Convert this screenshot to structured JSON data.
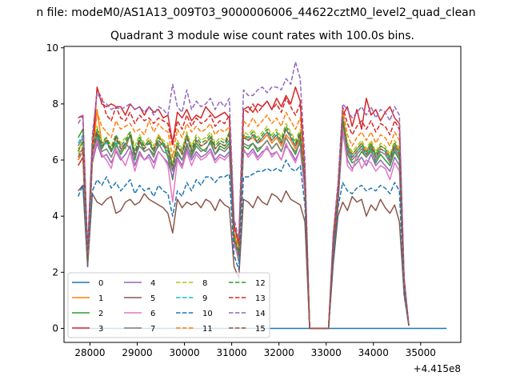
{
  "chart_data": {
    "type": "line",
    "suptitle": "n file: modeM0/AS1A13_009T03_9000006006_44622cztM0_level2_quad_clean",
    "title": "Quadrant 3 module wise count rates with 100.0s bins.",
    "offset_label": "+4.415e8",
    "xlabel": "",
    "ylabel": "",
    "xlim": [
      27450,
      35850
    ],
    "ylim": [
      -0.5,
      10.05
    ],
    "xticks": [
      28000,
      29000,
      30000,
      31000,
      32000,
      33000,
      34000,
      35000
    ],
    "xtick_labels": [
      "28000",
      "29000",
      "30000",
      "31000",
      "32000",
      "33000",
      "34000",
      "35000"
    ],
    "yticks": [
      0,
      2,
      4,
      6,
      8,
      10
    ],
    "ytick_labels": [
      "0",
      "2",
      "4",
      "6",
      "8",
      "10"
    ],
    "grid": false,
    "legend_location": "lower left",
    "legend_columns": 4,
    "x_start": 27750,
    "x_step": 100,
    "series": [
      {
        "name": "0",
        "color": "#1f77b4",
        "dash": "solid",
        "values": [
          0,
          0,
          0,
          0,
          0,
          0,
          0,
          0,
          0,
          0,
          0,
          0,
          0,
          0,
          0,
          0,
          0,
          0,
          0,
          0,
          0,
          0,
          0,
          0,
          0,
          0,
          0,
          0,
          0,
          0,
          0,
          0,
          0,
          0,
          0,
          0,
          0,
          0,
          0,
          0,
          0,
          0,
          0,
          0,
          0,
          0,
          0,
          0,
          0,
          0,
          0,
          0,
          0,
          0,
          0,
          0,
          0,
          0,
          0,
          0,
          0,
          0,
          0,
          0,
          0,
          0,
          0,
          0,
          0,
          0,
          0,
          0,
          0,
          0,
          0,
          0,
          0,
          0,
          0
        ]
      },
      {
        "name": "1",
        "color": "#ff7f0e",
        "dash": "solid",
        "values": [
          6.4,
          6.6,
          2.6,
          6.2,
          7.8,
          6.6,
          6.7,
          6.3,
          6.8,
          6.5,
          6.4,
          6.9,
          6.1,
          6.6,
          6.5,
          6.7,
          6.3,
          6.9,
          6.6,
          6.4,
          5.8,
          6.5,
          6.2,
          6.9,
          6.3,
          6.7,
          6.5,
          6.6,
          6.8,
          6.4,
          6.6,
          6.5,
          6.7,
          3.4,
          2.8,
          6.9,
          6.7,
          6.8,
          6.6,
          6.7,
          6.9,
          6.6,
          6.8,
          6.5,
          6.9,
          6.7,
          6.4,
          6.8,
          5.1,
          0,
          0,
          0,
          0,
          0,
          3.0,
          4.7,
          7.7,
          6.5,
          6.2,
          6.4,
          6.6,
          6.3,
          6.6,
          6.2,
          6.5,
          6.4,
          6.1,
          6.6,
          6.3,
          1.6,
          0.1
        ]
      },
      {
        "name": "2",
        "color": "#2ca02c",
        "dash": "solid",
        "values": [
          6.8,
          7.1,
          2.4,
          6.5,
          6.9,
          6.4,
          6.7,
          6.3,
          6.6,
          6.2,
          6.5,
          6.9,
          6.0,
          6.7,
          6.3,
          6.4,
          6.2,
          6.5,
          6.6,
          6.1,
          5.3,
          6.3,
          6.0,
          6.5,
          6.2,
          6.6,
          6.4,
          6.3,
          6.7,
          6.2,
          6.5,
          6.4,
          6.6,
          3.1,
          2.4,
          6.5,
          6.4,
          6.6,
          6.3,
          6.5,
          6.7,
          6.4,
          6.6,
          6.3,
          6.8,
          6.5,
          6.2,
          6.7,
          5.0,
          0,
          0,
          0,
          0,
          0,
          2.6,
          4.5,
          7.3,
          6.2,
          5.9,
          6.0,
          6.3,
          6.1,
          6.4,
          5.9,
          6.2,
          6.0,
          5.8,
          6.3,
          6.0,
          1.4,
          0.1
        ]
      },
      {
        "name": "3",
        "color": "#d62728",
        "dash": "solid",
        "values": [
          5.8,
          6.1,
          2.2,
          6.0,
          8.6,
          8.0,
          7.9,
          8.0,
          7.9,
          7.9,
          7.6,
          8.0,
          7.8,
          7.9,
          7.6,
          7.9,
          7.7,
          7.8,
          7.5,
          7.6,
          6.6,
          7.7,
          7.5,
          7.8,
          7.4,
          7.6,
          7.5,
          7.9,
          7.7,
          7.5,
          7.6,
          7.7,
          7.5,
          3.7,
          3.0,
          7.8,
          7.9,
          7.7,
          8.0,
          7.9,
          8.1,
          7.8,
          8.2,
          7.9,
          8.3,
          8.0,
          8.6,
          8.1,
          5.6,
          0,
          0,
          0,
          0,
          0,
          3.3,
          5.0,
          7.6,
          7.9,
          7.2,
          7.8,
          7.1,
          8.2,
          7.6,
          7.8,
          7.4,
          7.7,
          7.9,
          7.5,
          7.3,
          1.8,
          0.1
        ]
      },
      {
        "name": "4",
        "color": "#9467bd",
        "dash": "solid",
        "values": [
          6.0,
          6.3,
          2.3,
          5.9,
          6.6,
          6.1,
          6.2,
          5.9,
          6.3,
          6.0,
          6.2,
          6.5,
          5.8,
          6.3,
          6.0,
          6.2,
          5.9,
          6.3,
          6.1,
          5.9,
          5.4,
          6.1,
          5.8,
          6.4,
          6.0,
          6.3,
          6.1,
          6.2,
          6.4,
          6.0,
          6.2,
          6.1,
          6.3,
          3.0,
          2.5,
          6.3,
          6.2,
          6.4,
          6.1,
          6.3,
          6.4,
          6.2,
          6.3,
          6.0,
          6.5,
          6.3,
          6.0,
          6.4,
          4.9,
          0,
          0,
          0,
          0,
          0,
          2.5,
          4.4,
          7.0,
          6.0,
          5.7,
          5.9,
          6.1,
          5.8,
          6.2,
          5.8,
          6.0,
          5.8,
          5.6,
          6.1,
          5.8,
          1.3,
          0.1
        ]
      },
      {
        "name": "5",
        "color": "#8c564b",
        "dash": "solid",
        "values": [
          4.9,
          5.1,
          2.2,
          4.8,
          4.5,
          4.4,
          4.6,
          4.7,
          4.1,
          4.2,
          4.5,
          4.6,
          4.4,
          4.5,
          4.8,
          4.6,
          4.5,
          4.4,
          4.3,
          4.1,
          3.4,
          4.6,
          4.3,
          4.5,
          4.4,
          4.5,
          4.3,
          4.6,
          4.5,
          4.2,
          4.6,
          4.4,
          4.3,
          2.2,
          1.8,
          4.6,
          4.5,
          4.3,
          4.7,
          4.5,
          4.4,
          4.8,
          4.7,
          4.5,
          4.9,
          4.6,
          4.5,
          4.4,
          3.8,
          0,
          0,
          0,
          0,
          0,
          2.3,
          4.0,
          4.5,
          4.2,
          4.7,
          4.5,
          4.6,
          4.0,
          4.4,
          4.2,
          4.6,
          4.3,
          4.1,
          4.4,
          3.8,
          1.2,
          0.1
        ]
      },
      {
        "name": "6",
        "color": "#e377c2",
        "dash": "solid",
        "values": [
          6.2,
          6.4,
          2.3,
          6.1,
          6.7,
          6.2,
          6.0,
          5.7,
          6.4,
          6.1,
          5.8,
          6.3,
          5.6,
          6.2,
          6.0,
          6.1,
          5.7,
          6.3,
          6.1,
          5.8,
          4.5,
          6.0,
          5.7,
          6.3,
          5.8,
          6.2,
          6.0,
          6.1,
          6.3,
          5.9,
          6.1,
          6.0,
          6.2,
          3.0,
          2.5,
          6.4,
          6.1,
          6.3,
          6.0,
          6.2,
          6.5,
          6.1,
          6.3,
          6.0,
          6.6,
          6.2,
          5.9,
          6.4,
          4.8,
          0,
          0,
          0,
          0,
          0,
          2.7,
          4.6,
          7.2,
          5.8,
          5.6,
          6.2,
          5.7,
          6.0,
          5.9,
          5.6,
          5.8,
          5.7,
          5.3,
          5.9,
          5.6,
          1.3,
          0.1
        ]
      },
      {
        "name": "7",
        "color": "#7f7f7f",
        "dash": "solid",
        "values": [
          6.5,
          6.8,
          2.4,
          6.3,
          6.8,
          6.3,
          6.4,
          6.1,
          6.5,
          6.3,
          6.6,
          6.4,
          6.1,
          6.5,
          6.3,
          6.4,
          6.1,
          6.6,
          6.3,
          6.2,
          5.6,
          6.2,
          6.0,
          6.6,
          6.1,
          6.5,
          6.3,
          6.4,
          6.6,
          6.2,
          6.4,
          6.3,
          6.5,
          3.2,
          2.6,
          6.6,
          6.5,
          6.6,
          6.4,
          6.5,
          6.7,
          6.4,
          6.6,
          6.3,
          6.8,
          6.5,
          6.3,
          6.6,
          5.1,
          0,
          0,
          0,
          0,
          0,
          2.8,
          4.6,
          7.4,
          6.3,
          6.0,
          6.2,
          6.4,
          6.1,
          6.3,
          6.0,
          6.3,
          6.2,
          5.9,
          6.4,
          6.1,
          1.4,
          0.1
        ]
      },
      {
        "name": "8",
        "color": "#bcbd22",
        "dash": "dashed",
        "values": [
          6.2,
          6.5,
          2.5,
          6.3,
          7.2,
          6.7,
          6.8,
          6.5,
          6.9,
          6.6,
          6.8,
          7.0,
          6.5,
          6.9,
          6.6,
          6.8,
          6.5,
          6.9,
          6.7,
          6.6,
          5.9,
          6.7,
          6.4,
          7.0,
          6.5,
          6.9,
          6.7,
          6.8,
          7.0,
          6.6,
          6.8,
          6.7,
          6.9,
          3.3,
          2.7,
          7.0,
          6.9,
          7.1,
          6.8,
          7.0,
          7.2,
          6.9,
          7.1,
          6.8,
          7.3,
          7.0,
          6.7,
          7.1,
          5.4,
          0,
          0,
          0,
          0,
          0,
          2.9,
          4.8,
          7.6,
          6.6,
          6.3,
          6.5,
          6.7,
          6.4,
          6.7,
          6.3,
          6.6,
          6.5,
          6.2,
          6.7,
          6.4,
          1.5,
          0.1
        ]
      },
      {
        "name": "9",
        "color": "#17becf",
        "dash": "dashed",
        "values": [
          6.6,
          6.9,
          2.6,
          6.4,
          7.0,
          6.5,
          6.6,
          6.3,
          6.7,
          6.4,
          6.5,
          6.9,
          6.2,
          6.8,
          6.5,
          6.6,
          6.3,
          6.7,
          6.5,
          6.3,
          5.7,
          6.5,
          6.2,
          6.8,
          6.3,
          6.7,
          6.5,
          6.6,
          6.8,
          6.4,
          6.6,
          6.5,
          6.7,
          3.2,
          2.6,
          6.8,
          6.7,
          6.9,
          6.6,
          6.8,
          7.0,
          6.7,
          6.9,
          6.6,
          7.1,
          6.8,
          6.5,
          6.9,
          5.2,
          0,
          0,
          0,
          0,
          0,
          2.8,
          4.7,
          7.5,
          6.4,
          6.1,
          6.3,
          6.5,
          6.2,
          6.5,
          6.1,
          6.4,
          6.3,
          6.0,
          6.5,
          6.2,
          1.5,
          0.1
        ]
      },
      {
        "name": "10",
        "color": "#1f77b4",
        "dash": "dashed",
        "values": [
          4.7,
          5.1,
          2.3,
          4.9,
          5.3,
          5.1,
          5.4,
          5.0,
          5.2,
          4.9,
          5.1,
          5.3,
          4.8,
          5.1,
          4.9,
          5.0,
          4.7,
          5.1,
          4.9,
          4.8,
          4.0,
          4.9,
          4.7,
          5.2,
          4.9,
          5.3,
          5.1,
          5.4,
          5.4,
          5.2,
          5.4,
          5.4,
          5.5,
          2.6,
          2.1,
          5.4,
          5.4,
          5.5,
          5.6,
          5.6,
          5.7,
          5.6,
          5.7,
          5.6,
          6.0,
          5.7,
          5.6,
          5.8,
          4.4,
          0,
          0,
          0,
          0,
          0,
          2.4,
          4.3,
          5.2,
          4.9,
          4.8,
          5.0,
          5.1,
          4.9,
          5.0,
          4.9,
          5.1,
          5.0,
          4.8,
          5.2,
          4.9,
          1.2,
          0.1
        ]
      },
      {
        "name": "11",
        "color": "#ff7f0e",
        "dash": "dashed",
        "values": [
          6.0,
          6.3,
          2.4,
          6.1,
          7.7,
          7.2,
          7.0,
          6.8,
          7.4,
          7.1,
          7.2,
          7.3,
          7.0,
          7.1,
          6.9,
          7.4,
          7.0,
          7.3,
          7.1,
          7.0,
          6.1,
          7.1,
          6.8,
          7.3,
          7.0,
          7.2,
          7.0,
          7.1,
          7.3,
          6.9,
          7.1,
          7.0,
          7.2,
          3.5,
          2.8,
          7.4,
          7.2,
          7.5,
          7.2,
          7.4,
          7.6,
          7.3,
          7.5,
          7.2,
          7.7,
          7.4,
          7.1,
          7.5,
          5.5,
          0,
          0,
          0,
          0,
          0,
          3.0,
          4.9,
          7.8,
          6.9,
          6.5,
          6.8,
          7.0,
          6.7,
          7.0,
          6.6,
          6.9,
          6.8,
          6.5,
          7.0,
          6.7,
          1.6,
          0.1
        ]
      },
      {
        "name": "12",
        "color": "#2ca02c",
        "dash": "dashed",
        "values": [
          6.3,
          6.7,
          2.5,
          6.4,
          7.1,
          6.6,
          6.8,
          6.4,
          6.9,
          6.5,
          6.7,
          7.0,
          6.3,
          6.8,
          6.5,
          6.7,
          6.4,
          6.8,
          6.6,
          6.5,
          5.8,
          6.6,
          6.3,
          6.9,
          6.4,
          6.8,
          6.6,
          6.7,
          6.9,
          6.5,
          6.7,
          6.6,
          7.0,
          3.3,
          2.7,
          6.9,
          6.8,
          7.0,
          6.7,
          6.9,
          7.1,
          6.8,
          7.0,
          6.7,
          7.2,
          6.9,
          6.6,
          7.0,
          5.3,
          0,
          0,
          0,
          0,
          0,
          2.9,
          4.7,
          7.5,
          6.5,
          6.2,
          6.4,
          6.6,
          6.3,
          6.6,
          6.2,
          6.5,
          6.4,
          6.1,
          6.6,
          6.3,
          1.5,
          0.1
        ]
      },
      {
        "name": "13",
        "color": "#d62728",
        "dash": "dashed",
        "values": [
          7.5,
          7.6,
          2.8,
          6.6,
          8.5,
          8.2,
          7.6,
          7.4,
          7.9,
          7.5,
          7.4,
          7.7,
          7.3,
          7.6,
          7.4,
          7.5,
          7.3,
          7.5,
          7.4,
          7.3,
          6.5,
          7.4,
          7.1,
          7.6,
          7.2,
          7.5,
          7.3,
          7.4,
          7.6,
          7.2,
          7.4,
          7.3,
          7.6,
          3.7,
          3.0,
          7.8,
          7.7,
          8.0,
          7.7,
          7.9,
          8.1,
          7.8,
          8.0,
          7.7,
          8.2,
          7.9,
          7.6,
          8.0,
          5.7,
          0,
          0,
          0,
          0,
          0,
          3.2,
          5.0,
          7.9,
          7.3,
          6.9,
          7.2,
          7.4,
          7.1,
          7.4,
          7.0,
          7.3,
          7.2,
          6.9,
          7.4,
          7.1,
          1.7,
          0.1
        ]
      },
      {
        "name": "14",
        "color": "#9467bd",
        "dash": "dashed",
        "values": [
          7.3,
          7.6,
          2.7,
          6.9,
          8.4,
          8.1,
          8.0,
          7.8,
          7.9,
          7.8,
          7.9,
          8.0,
          7.8,
          7.9,
          7.7,
          7.9,
          7.6,
          7.9,
          7.8,
          7.6,
          8.7,
          7.9,
          7.7,
          8.5,
          7.8,
          8.1,
          7.9,
          8.0,
          8.2,
          7.8,
          8.1,
          7.9,
          8.2,
          3.9,
          3.2,
          8.5,
          8.3,
          8.3,
          8.5,
          8.6,
          8.4,
          8.6,
          8.6,
          8.5,
          8.9,
          8.7,
          9.5,
          8.9,
          6.0,
          0,
          0,
          0,
          0,
          0,
          3.4,
          5.2,
          8.0,
          7.8,
          7.5,
          7.7,
          7.9,
          7.6,
          7.9,
          7.5,
          7.8,
          7.7,
          7.4,
          7.9,
          7.6,
          1.8,
          0.1
        ]
      },
      {
        "name": "15",
        "color": "#8c564b",
        "dash": "dashed",
        "values": [
          6.1,
          6.4,
          2.4,
          6.2,
          7.0,
          6.5,
          6.7,
          6.3,
          6.8,
          6.4,
          6.6,
          6.9,
          6.2,
          6.7,
          6.4,
          6.6,
          6.3,
          6.7,
          6.5,
          6.4,
          5.7,
          6.5,
          6.2,
          6.8,
          6.3,
          6.7,
          6.5,
          6.6,
          6.8,
          6.4,
          6.6,
          6.5,
          6.9,
          3.2,
          2.6,
          6.8,
          6.7,
          6.9,
          6.6,
          6.8,
          7.0,
          6.7,
          6.9,
          6.6,
          7.1,
          6.8,
          6.5,
          6.9,
          5.2,
          0,
          0,
          0,
          0,
          0,
          2.8,
          4.6,
          7.4,
          6.4,
          6.1,
          6.3,
          6.5,
          6.2,
          6.5,
          6.1,
          6.4,
          6.3,
          6.0,
          6.5,
          6.2,
          1.4,
          0.1
        ]
      }
    ]
  }
}
